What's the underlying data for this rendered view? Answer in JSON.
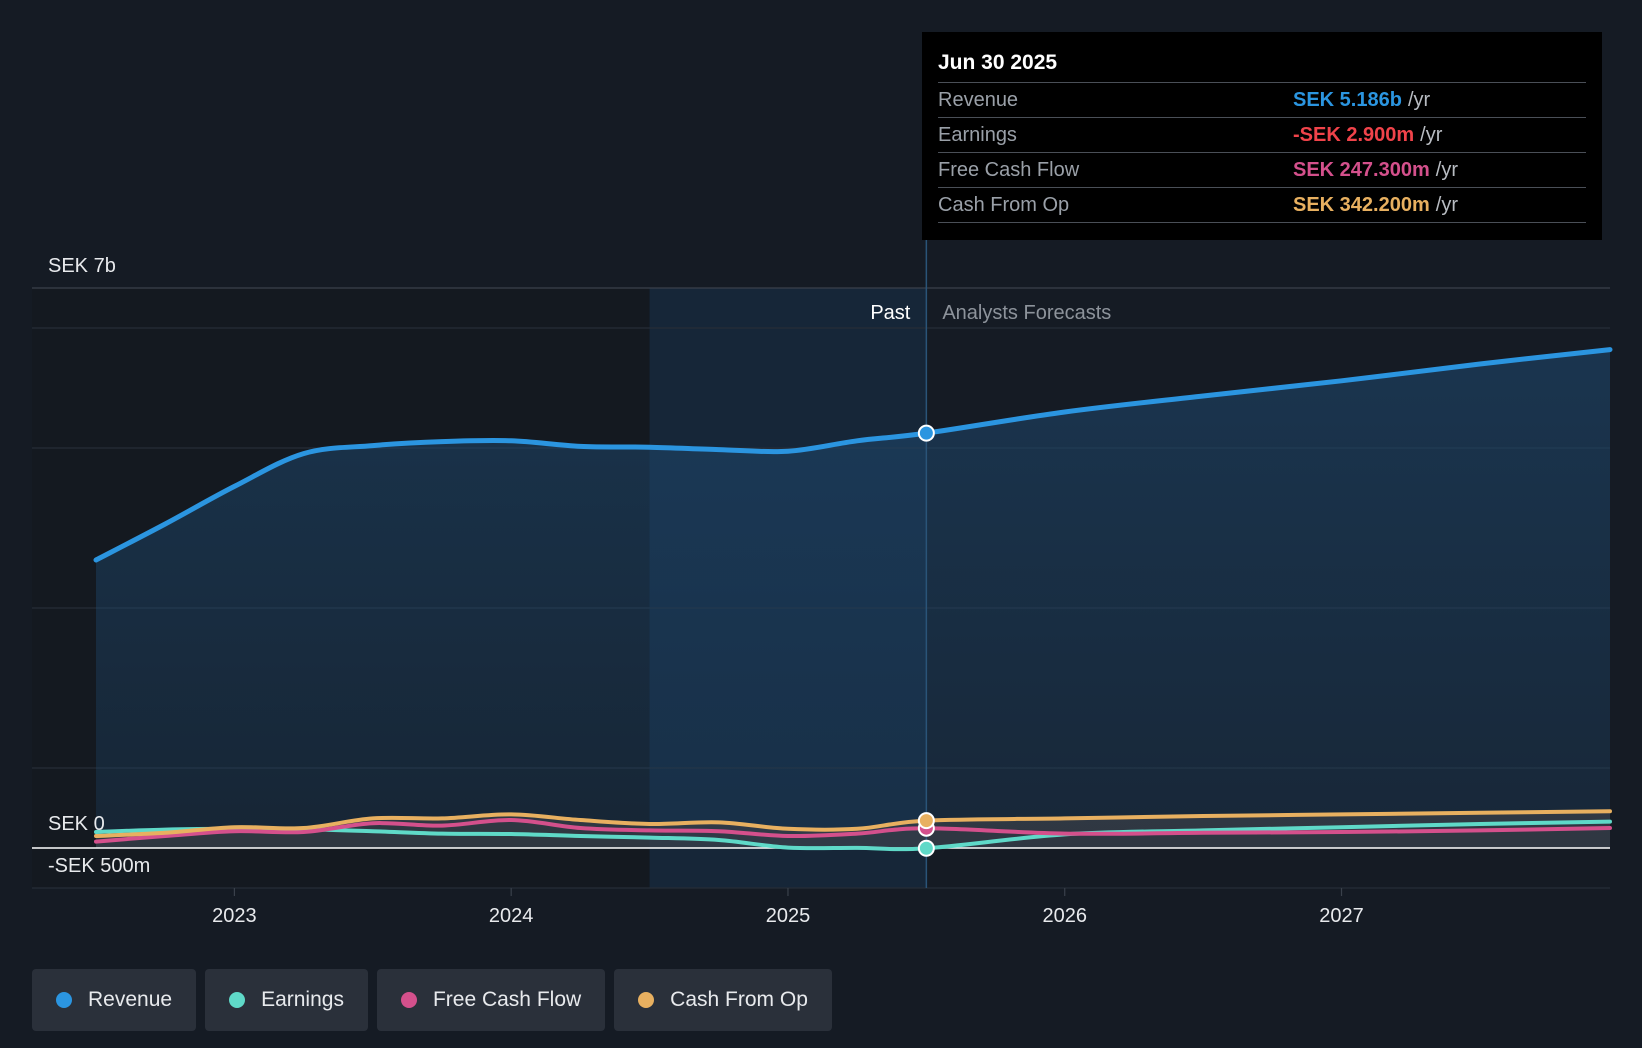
{
  "chart_data": {
    "type": "line",
    "title": "",
    "xlabel": "",
    "ylabel": "",
    "ylim": [
      -500000000,
      7000000000
    ],
    "y_axis_labels": {
      "top": "SEK 7b",
      "zero": "SEK 0",
      "bottom": "-SEK 500m"
    },
    "x_ticks": [
      2023,
      2024,
      2025,
      2026,
      2027
    ],
    "x_tick_labels": [
      "2023",
      "2024",
      "2025",
      "2026",
      "2027"
    ],
    "x_range": [
      2022.5,
      2027.97
    ],
    "past_label": "Past",
    "forecast_label": "Analysts Forecasts",
    "divider_x": 2025.5,
    "highlight_start_x": 2024.5,
    "series": [
      {
        "name": "Revenue",
        "color": "#2b95e0",
        "x": [
          2022.5,
          2022.75,
          2023.0,
          2023.25,
          2023.5,
          2023.75,
          2024.0,
          2024.25,
          2024.5,
          2024.75,
          2025.0,
          2025.25,
          2025.5
        ],
        "values": [
          3600000000,
          4050000000,
          4520000000,
          4930000000,
          5030000000,
          5080000000,
          5090000000,
          5020000000,
          5010000000,
          4980000000,
          4960000000,
          5090000000,
          5186000000
        ],
        "forecast_x": [
          2025.5,
          2026.0,
          2026.5,
          2027.0,
          2027.5,
          2027.97
        ],
        "forecast_values": [
          5186000000,
          5450000000,
          5650000000,
          5840000000,
          6050000000,
          6230000000
        ]
      },
      {
        "name": "Earnings",
        "color": "#5fd9c8",
        "x": [
          2022.5,
          2022.75,
          2023.0,
          2023.25,
          2023.5,
          2023.75,
          2024.0,
          2024.25,
          2024.5,
          2024.75,
          2025.0,
          2025.25,
          2025.5
        ],
        "values": [
          200000000,
          230000000,
          240000000,
          235000000,
          210000000,
          180000000,
          175000000,
          150000000,
          130000000,
          100000000,
          5000000,
          2000000,
          -2900000
        ],
        "forecast_x": [
          2025.5,
          2026.0,
          2026.5,
          2027.0,
          2027.5,
          2027.97
        ],
        "forecast_values": [
          -2900000,
          170000000,
          220000000,
          260000000,
          300000000,
          330000000
        ]
      },
      {
        "name": "Free Cash Flow",
        "color": "#d4508c",
        "x": [
          2022.5,
          2022.75,
          2023.0,
          2023.25,
          2023.5,
          2023.75,
          2024.0,
          2024.25,
          2024.5,
          2024.75,
          2025.0,
          2025.25,
          2025.5
        ],
        "values": [
          80000000,
          150000000,
          210000000,
          200000000,
          310000000,
          280000000,
          350000000,
          250000000,
          220000000,
          210000000,
          150000000,
          180000000,
          247300000
        ],
        "forecast_x": [
          2025.5,
          2026.0,
          2026.5,
          2027.0,
          2027.5,
          2027.97
        ],
        "forecast_values": [
          247300000,
          180000000,
          190000000,
          200000000,
          220000000,
          250000000
        ]
      },
      {
        "name": "Cash From Op",
        "color": "#e8b060",
        "x": [
          2022.5,
          2022.75,
          2023.0,
          2023.25,
          2023.5,
          2023.75,
          2024.0,
          2024.25,
          2024.5,
          2024.75,
          2025.0,
          2025.25,
          2025.5
        ],
        "values": [
          150000000,
          190000000,
          260000000,
          250000000,
          370000000,
          370000000,
          420000000,
          350000000,
          300000000,
          320000000,
          240000000,
          240000000,
          342200000
        ],
        "forecast_x": [
          2025.5,
          2026.0,
          2026.5,
          2027.0,
          2027.5,
          2027.97
        ],
        "forecast_values": [
          342200000,
          370000000,
          400000000,
          420000000,
          440000000,
          460000000
        ]
      }
    ]
  },
  "tooltip": {
    "date": "Jun 30 2025",
    "rows": [
      {
        "label": "Revenue",
        "value": "SEK 5.186b",
        "unit": "/yr",
        "color": "#2b95e0"
      },
      {
        "label": "Earnings",
        "value": "-SEK 2.900m",
        "unit": "/yr",
        "color": "#f0434a"
      },
      {
        "label": "Free Cash Flow",
        "value": "SEK 247.300m",
        "unit": "/yr",
        "color": "#d4508c"
      },
      {
        "label": "Cash From Op",
        "value": "SEK 342.200m",
        "unit": "/yr",
        "color": "#e8b060"
      }
    ]
  },
  "legend": [
    {
      "label": "Revenue",
      "color": "#2b95e0"
    },
    {
      "label": "Earnings",
      "color": "#5fd9c8"
    },
    {
      "label": "Free Cash Flow",
      "color": "#d4508c"
    },
    {
      "label": "Cash From Op",
      "color": "#e8b060"
    }
  ]
}
